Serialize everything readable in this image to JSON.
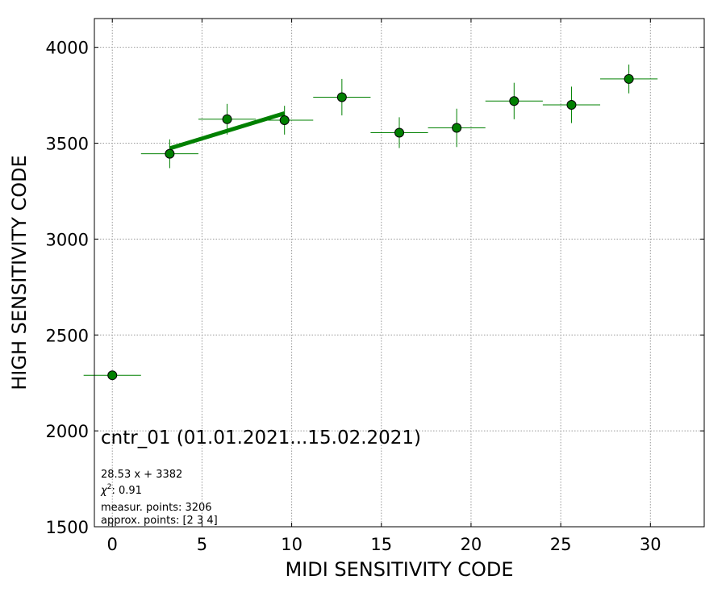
{
  "chart_data": {
    "type": "scatter",
    "title": "cntr_01 (01.01.2021...15.02.2021)",
    "xlabel": "MIDI SENSITIVITY CODE",
    "ylabel": "HIGH SENSITIVITY CODE",
    "xlim": [
      -1,
      33
    ],
    "ylim": [
      1500,
      4150
    ],
    "xticks": [
      0,
      5,
      10,
      15,
      20,
      25,
      30
    ],
    "yticks": [
      1500,
      2000,
      2500,
      3000,
      3500,
      4000
    ],
    "grid": true,
    "series": [
      {
        "kind": "points_with_errorbars",
        "color": "#008000",
        "points": [
          {
            "x": 0,
            "y": 2290,
            "xerr": 1.6,
            "yerr": 0
          },
          {
            "x": 3.2,
            "y": 3445,
            "xerr": 1.6,
            "yerr": 75
          },
          {
            "x": 6.4,
            "y": 3625,
            "xerr": 1.6,
            "yerr": 80
          },
          {
            "x": 9.6,
            "y": 3620,
            "xerr": 1.6,
            "yerr": 75
          },
          {
            "x": 12.8,
            "y": 3740,
            "xerr": 1.6,
            "yerr": 95
          },
          {
            "x": 16.0,
            "y": 3555,
            "xerr": 1.6,
            "yerr": 80
          },
          {
            "x": 19.2,
            "y": 3580,
            "xerr": 1.6,
            "yerr": 100
          },
          {
            "x": 22.4,
            "y": 3720,
            "xerr": 1.6,
            "yerr": 95
          },
          {
            "x": 25.6,
            "y": 3700,
            "xerr": 1.6,
            "yerr": 95
          },
          {
            "x": 28.8,
            "y": 3835,
            "xerr": 1.6,
            "yerr": 75
          }
        ]
      },
      {
        "kind": "fit_line",
        "color": "#008000",
        "x": [
          3.2,
          9.6
        ],
        "y": [
          3473,
          3656
        ]
      }
    ],
    "annotations": [
      "28.53 x + 3382",
      "measur. points: 3206",
      "approx. points: [2 3 4]"
    ],
    "chi2_label": "χ",
    "chi2_sup": "2",
    "chi2_value": ": 0.91"
  }
}
